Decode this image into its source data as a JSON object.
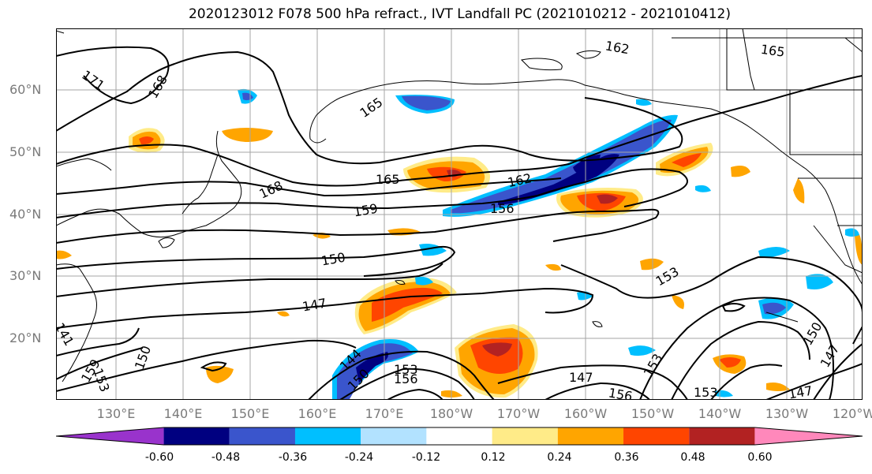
{
  "title": "2020123012 F078 500 hPa refract., IVT Landfall PC (2021010212 - 2021010412)",
  "lat_labels": [
    "60°N",
    "50°N",
    "40°N",
    "30°N",
    "20°N"
  ],
  "lon_labels": [
    "130°E",
    "140°E",
    "150°E",
    "160°E",
    "170°E",
    "180°W",
    "170°W",
    "160°W",
    "150°W",
    "140°W",
    "130°W",
    "120°W"
  ],
  "colorbar": {
    "colors": [
      "#9933cc",
      "#000080",
      "#3a55cc",
      "#00bfff",
      "#b2e2ff",
      "#ffffff",
      "#ffeb88",
      "#ffa500",
      "#ff4500",
      "#b22222",
      "#ff88bb"
    ],
    "tick_labels": [
      "-0.60",
      "-0.48",
      "-0.36",
      "-0.24",
      "-0.12",
      "0.12",
      "0.24",
      "0.36",
      "0.48",
      "0.60"
    ]
  },
  "contour_labels": [
    "171",
    "168",
    "165",
    "162",
    "165",
    "168",
    "165",
    "162",
    "159",
    "156",
    "150",
    "153",
    "147",
    "141",
    "150",
    "144",
    "150",
    "153",
    "156",
    "153",
    "159",
    "147",
    "156",
    "153",
    "153",
    "150",
    "147",
    "147"
  ]
}
